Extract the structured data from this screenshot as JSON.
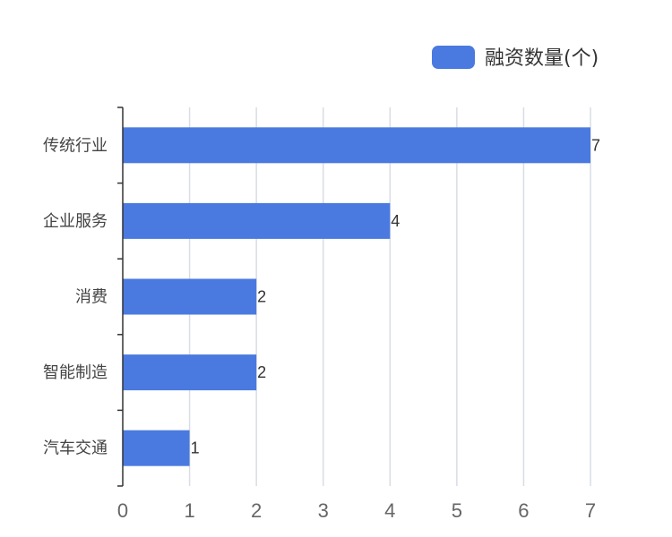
{
  "colors": {
    "bar": "#4a7ae0",
    "grid": "#d9dde6",
    "axis": "#333333"
  },
  "legend": {
    "label": "融资数量(个)",
    "position": "top-right"
  },
  "chart_data": {
    "type": "bar",
    "orientation": "horizontal",
    "categories": [
      "传统行业",
      "企业服务",
      "消费",
      "智能制造",
      "汽车交通"
    ],
    "series": [
      {
        "name": "融资数量(个)",
        "values": [
          7,
          4,
          2,
          2,
          1
        ]
      }
    ],
    "xlim": [
      0,
      7
    ],
    "xticks": [
      "0",
      "1",
      "2",
      "3",
      "4",
      "5",
      "6",
      "7"
    ],
    "grid": true,
    "data_labels": true
  }
}
